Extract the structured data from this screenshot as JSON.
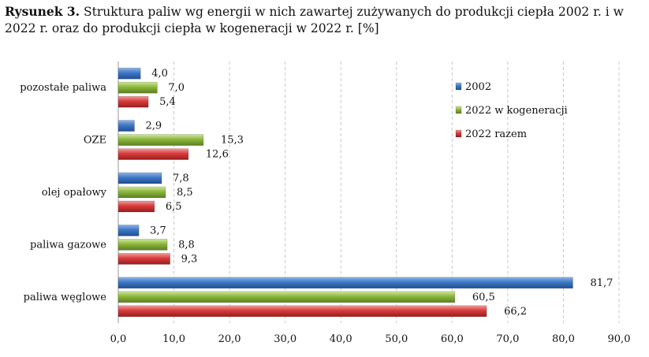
{
  "figure_label": "Rysunek 3.",
  "caption": "Struktura paliw wg energii w nich zawartej zużywanych do produkcji ciepła 2002 r. i w 2022 r. oraz do produkcji ciepła w kogeneracji w 2022 r. [%]",
  "colors": {
    "2002": "#3d77c4",
    "2022 w kogeneracji": "#8cb63c",
    "2022 razem": "#d83b3b"
  },
  "chart_data": {
    "type": "bar",
    "orientation": "horizontal",
    "categories": [
      "pozostałe paliwa",
      "OZE",
      "olej opałowy",
      "paliwa gazowe",
      "paliwa węglowe"
    ],
    "series": [
      {
        "name": "2002",
        "values": [
          4.0,
          2.9,
          7.8,
          3.7,
          81.7
        ],
        "labels": [
          "4,0",
          "2,9",
          "7,8",
          "3,7",
          "81,7"
        ]
      },
      {
        "name": "2022 w kogeneracji",
        "values": [
          7.0,
          15.3,
          8.5,
          8.8,
          60.5
        ],
        "labels": [
          "7,0",
          "15,3",
          "8,5",
          "8,8",
          "60,5"
        ]
      },
      {
        "name": "2022 razem",
        "values": [
          5.4,
          12.6,
          6.5,
          9.3,
          66.2
        ],
        "labels": [
          "5,4",
          "12,6",
          "6,5",
          "9,3",
          "66,2"
        ]
      }
    ],
    "xlim": [
      0,
      90
    ],
    "x_ticks": [
      0,
      10,
      20,
      30,
      40,
      50,
      60,
      70,
      80,
      90
    ],
    "x_tick_labels": [
      "0,0",
      "10,0",
      "20,0",
      "30,0",
      "40,0",
      "50,0",
      "60,0",
      "70,0",
      "80,0",
      "90,0"
    ],
    "grid": "vertical dashed",
    "legend_position": "top-right"
  }
}
